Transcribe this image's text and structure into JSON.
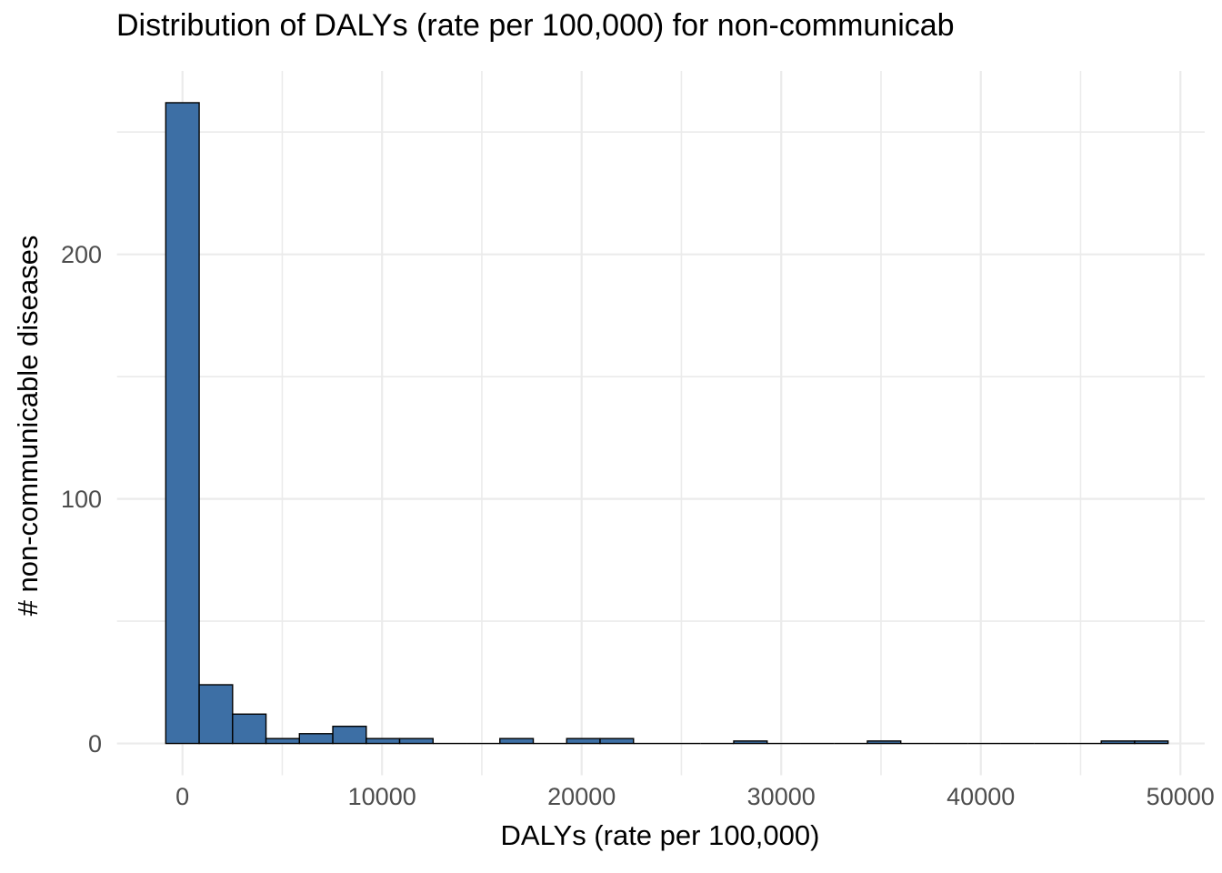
{
  "chart_data": {
    "type": "bar",
    "subtype": "histogram",
    "title": "Distribution of DALYs (rate per 100,000) for non-communicab",
    "xlabel": "DALYs (rate per 100,000)",
    "ylabel": "# non-communicable diseases",
    "bin_start": -837,
    "bin_width": 1674,
    "counts": [
      262,
      24,
      12,
      2,
      4,
      7,
      2,
      2,
      0,
      0,
      2,
      0,
      2,
      2,
      0,
      0,
      0,
      1,
      0,
      0,
      0,
      1,
      0,
      0,
      0,
      0,
      0,
      0,
      1,
      1
    ],
    "x_ticks": [
      0,
      10000,
      20000,
      30000,
      40000,
      50000
    ],
    "x_tick_labels": [
      "0",
      "10000",
      "20000",
      "30000",
      "40000",
      "50000"
    ],
    "x_minor_ticks": [
      5000,
      15000,
      25000,
      35000,
      45000
    ],
    "y_ticks": [
      0,
      100,
      200
    ],
    "y_tick_labels": [
      "0",
      "100",
      "200"
    ],
    "y_minor_ticks": [
      50,
      150,
      250
    ],
    "x_range": [
      -3280,
      51220
    ],
    "y_range": [
      -13,
      275
    ],
    "grid": "on",
    "legend": "none",
    "colors": {
      "bar_fill": "#3D6FA5",
      "bar_stroke": "#000000",
      "gridline": "#EBEBEB",
      "tick_text": "#4D4D4D",
      "title_text": "#000000",
      "background": "#FFFFFF"
    }
  }
}
